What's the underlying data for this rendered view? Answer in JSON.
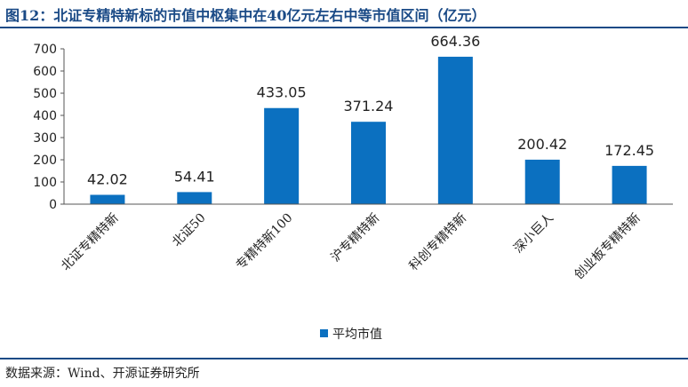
{
  "header": {
    "title": "图12：北证专精特新标的市值中枢集中在40亿元左右中等市值区间（亿元）"
  },
  "footer": {
    "source": "数据来源：Wind、开源证券研究所"
  },
  "chart_data": {
    "type": "bar",
    "categories": [
      "北证专精特新",
      "北证50",
      "专精特新100",
      "沪专精特新",
      "科创专精特新",
      "深小巨人",
      "创业板专精特新"
    ],
    "series": [
      {
        "name": "平均市值",
        "values": [
          42.02,
          54.41,
          433.05,
          371.24,
          664.36,
          200.42,
          172.45
        ],
        "color": "#0b70c0"
      }
    ],
    "data_labels": [
      "42.02",
      "54.41",
      "433.05",
      "371.24",
      "664.36",
      "200.42",
      "172.45"
    ],
    "yticks": [
      0,
      100,
      200,
      300,
      400,
      500,
      600,
      700
    ],
    "ylim": [
      0,
      700
    ],
    "grid": false,
    "legend": "bottom-center"
  }
}
